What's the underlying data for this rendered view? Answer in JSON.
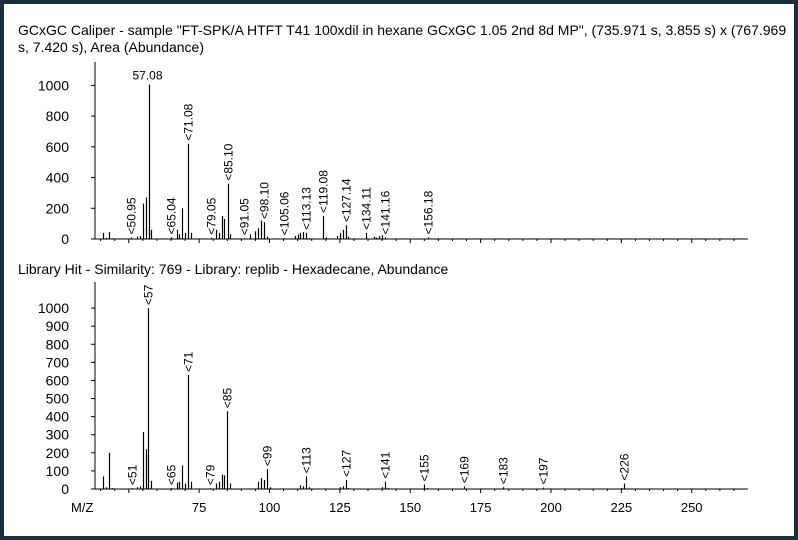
{
  "chart_data": [
    {
      "type": "bar",
      "title": "GCxGC Caliper - sample \"FT-SPK/A HTFT T41 100xdil in hexane GCxGC 1.05 2nd 8d MP\", (735.971 s, 3.855 s) x (767.969 s, 7.420 s), Area (Abundance)",
      "xlabel": "",
      "ylabel": "",
      "xlim": [
        38,
        270
      ],
      "ylim": [
        0,
        1100
      ],
      "y_ticks": [
        "0",
        "200",
        "400",
        "600",
        "800",
        "1000"
      ],
      "peak_labels": [
        {
          "x": 50.95,
          "text": "50.95"
        },
        {
          "x": 57.08,
          "text": "57.08"
        },
        {
          "x": 65.04,
          "text": "65.04"
        },
        {
          "x": 71.08,
          "text": "71.08"
        },
        {
          "x": 79.05,
          "text": "79.05"
        },
        {
          "x": 85.1,
          "text": "85.10"
        },
        {
          "x": 91.05,
          "text": "91.05"
        },
        {
          "x": 98.1,
          "text": "98.10"
        },
        {
          "x": 105.06,
          "text": "105.06"
        },
        {
          "x": 113.13,
          "text": "113.13"
        },
        {
          "x": 119.08,
          "text": "119.08"
        },
        {
          "x": 127.14,
          "text": "127.14"
        },
        {
          "x": 134.11,
          "text": "134.11"
        },
        {
          "x": 141.16,
          "text": "141.16"
        },
        {
          "x": 156.18,
          "text": "156.18"
        }
      ],
      "peaks": [
        [
          41,
          40
        ],
        [
          42,
          8
        ],
        [
          43,
          45
        ],
        [
          44,
          5
        ],
        [
          50.95,
          10
        ],
        [
          53,
          15
        ],
        [
          54,
          20
        ],
        [
          55,
          230
        ],
        [
          56,
          270
        ],
        [
          57.08,
          1005
        ],
        [
          58,
          60
        ],
        [
          65.04,
          10
        ],
        [
          67,
          60
        ],
        [
          68,
          30
        ],
        [
          69,
          200
        ],
        [
          70,
          40
        ],
        [
          71.08,
          620
        ],
        [
          72,
          40
        ],
        [
          79.05,
          8
        ],
        [
          81,
          60
        ],
        [
          82,
          40
        ],
        [
          83,
          150
        ],
        [
          84,
          130
        ],
        [
          85.1,
          360
        ],
        [
          86,
          30
        ],
        [
          91.05,
          5
        ],
        [
          93,
          30
        ],
        [
          95,
          50
        ],
        [
          96,
          70
        ],
        [
          97,
          120
        ],
        [
          98.1,
          110
        ],
        [
          99,
          15
        ],
        [
          105.06,
          5
        ],
        [
          109,
          20
        ],
        [
          110,
          30
        ],
        [
          111,
          40
        ],
        [
          112,
          45
        ],
        [
          113.13,
          40
        ],
        [
          114,
          5
        ],
        [
          119.08,
          150
        ],
        [
          120,
          10
        ],
        [
          124,
          20
        ],
        [
          125,
          40
        ],
        [
          126,
          60
        ],
        [
          127.14,
          90
        ],
        [
          128,
          15
        ],
        [
          134.11,
          40
        ],
        [
          137,
          15
        ],
        [
          138,
          10
        ],
        [
          139,
          20
        ],
        [
          140,
          25
        ],
        [
          141.16,
          10
        ],
        [
          156.18,
          10
        ]
      ]
    },
    {
      "type": "bar",
      "title": "Library Hit - Similarity: 769 - Library: replib - Hexadecane, Abundance",
      "xlabel": "M/Z",
      "ylabel": "",
      "xlim": [
        38,
        270
      ],
      "ylim": [
        0,
        1100
      ],
      "y_ticks": [
        "0",
        "100",
        "200",
        "300",
        "400",
        "500",
        "600",
        "700",
        "800",
        "900",
        "1000"
      ],
      "x_ticks": [
        "75",
        "100",
        "125",
        "150",
        "175",
        "200",
        "225",
        "250"
      ],
      "peak_labels": [
        {
          "x": 51,
          "text": "51"
        },
        {
          "x": 57,
          "text": "57"
        },
        {
          "x": 65,
          "text": "65"
        },
        {
          "x": 71,
          "text": "71"
        },
        {
          "x": 79,
          "text": "79"
        },
        {
          "x": 85,
          "text": "85"
        },
        {
          "x": 99,
          "text": "99"
        },
        {
          "x": 113,
          "text": "113"
        },
        {
          "x": 127,
          "text": "127"
        },
        {
          "x": 141,
          "text": "141"
        },
        {
          "x": 155,
          "text": "155"
        },
        {
          "x": 169,
          "text": "169"
        },
        {
          "x": 183,
          "text": "183"
        },
        {
          "x": 197,
          "text": "197"
        },
        {
          "x": 226,
          "text": "226"
        }
      ],
      "peaks": [
        [
          41,
          70
        ],
        [
          42,
          10
        ],
        [
          43,
          200
        ],
        [
          44,
          5
        ],
        [
          51,
          5
        ],
        [
          53,
          10
        ],
        [
          54,
          15
        ],
        [
          55,
          315
        ],
        [
          56,
          220
        ],
        [
          57,
          1000
        ],
        [
          58,
          45
        ],
        [
          65,
          5
        ],
        [
          67,
          35
        ],
        [
          68,
          40
        ],
        [
          69,
          130
        ],
        [
          70,
          30
        ],
        [
          71,
          630
        ],
        [
          72,
          40
        ],
        [
          79,
          5
        ],
        [
          81,
          30
        ],
        [
          82,
          40
        ],
        [
          83,
          80
        ],
        [
          84,
          75
        ],
        [
          85,
          430
        ],
        [
          86,
          30
        ],
        [
          96,
          40
        ],
        [
          97,
          60
        ],
        [
          98,
          50
        ],
        [
          99,
          110
        ],
        [
          100,
          10
        ],
        [
          111,
          20
        ],
        [
          112,
          15
        ],
        [
          113,
          70
        ],
        [
          114,
          10
        ],
        [
          125,
          10
        ],
        [
          126,
          15
        ],
        [
          127,
          50
        ],
        [
          128,
          5
        ],
        [
          140,
          10
        ],
        [
          141,
          40
        ],
        [
          142,
          5
        ],
        [
          155,
          25
        ],
        [
          156,
          5
        ],
        [
          169,
          15
        ],
        [
          183,
          10
        ],
        [
          197,
          8
        ],
        [
          225,
          5
        ],
        [
          226,
          30
        ]
      ]
    }
  ]
}
